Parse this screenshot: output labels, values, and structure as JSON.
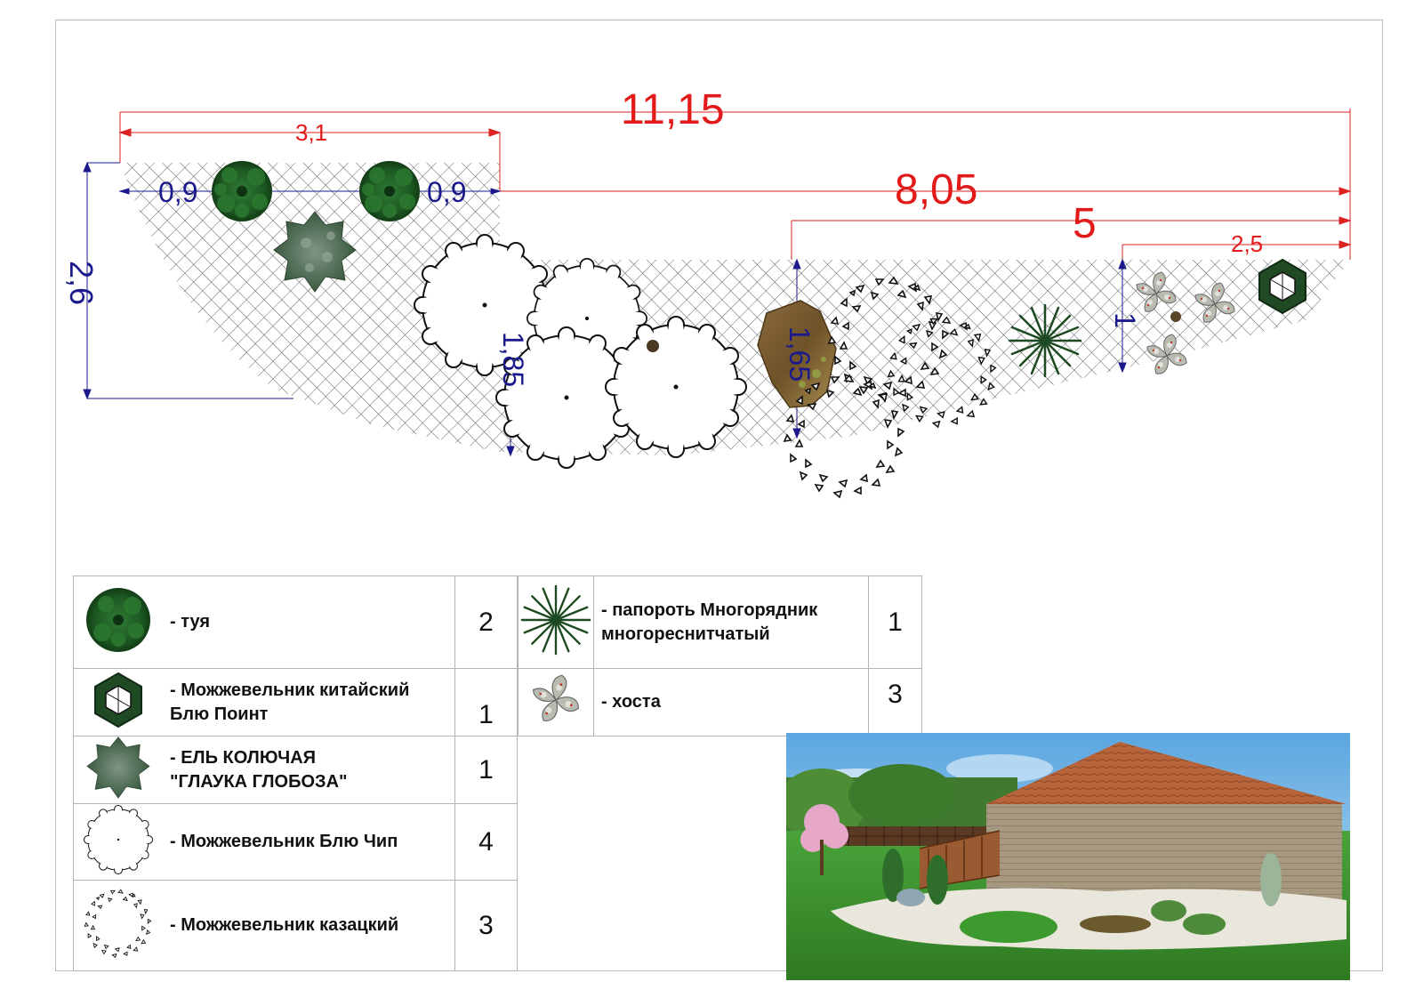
{
  "dimensions": {
    "total_length": "11,15",
    "left_section": "3,1",
    "right_section": "8,05",
    "mid_section": "5",
    "end_section": "2,5",
    "depth_left": "2,6",
    "depth_mid": "1,85",
    "depth_stone": "1,65",
    "depth_right": "1",
    "offset_left": "0,9",
    "offset_right": "0,9"
  },
  "legend": {
    "items": [
      {
        "icon": "thuja-icon",
        "label": "- туя",
        "qty": "2"
      },
      {
        "icon": "chinese-juniper-icon",
        "label_line1": "- Можжевельник китайский",
        "label_line2": "Блю Поинт",
        "qty": "1"
      },
      {
        "icon": "blue-spruce-icon",
        "label_line1": "- ЕЛЬ КОЛЮЧАЯ",
        "label_line2": "\"ГЛАУКА ГЛОБОЗА\"",
        "qty": "1"
      },
      {
        "icon": "blue-chip-juniper-icon",
        "label": "- Можжевельник Блю Чип",
        "qty": "4"
      },
      {
        "icon": "cossack-juniper-icon",
        "label": "- Можжевельник казацкий",
        "qty": "3"
      }
    ],
    "items_right": [
      {
        "icon": "fern-icon",
        "label_line1": "- папороть Многорядник",
        "label_line2": "многореснитчатый",
        "qty": "1"
      },
      {
        "icon": "hosta-icon",
        "label": "- хоста",
        "qty": "3"
      }
    ]
  },
  "colors": {
    "dimension_red": "#e21a1a",
    "dimension_blue": "#1a1a8c",
    "thuja": "#1f5a25",
    "spruce": "#4e6650",
    "hatch": "#555555",
    "roof": "#b8643a",
    "lawn": "#3f8f2b"
  }
}
